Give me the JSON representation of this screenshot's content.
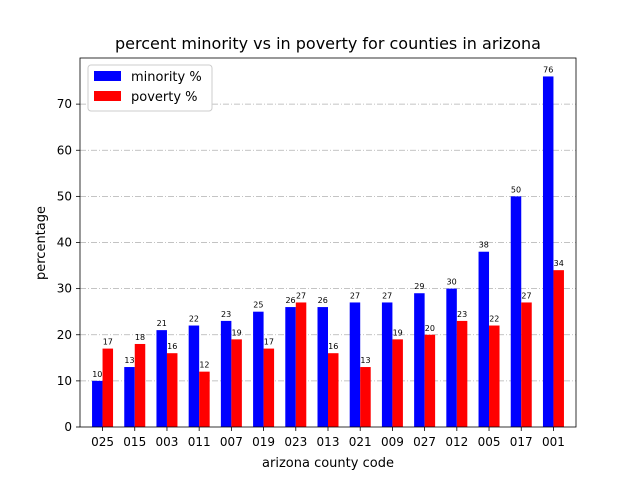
{
  "chart_data": {
    "type": "bar",
    "title": "percent minority vs in poverty for counties in arizona",
    "xlabel": "arizona county code",
    "ylabel": "percentage",
    "categories": [
      "025",
      "015",
      "003",
      "011",
      "007",
      "019",
      "023",
      "013",
      "021",
      "009",
      "027",
      "012",
      "005",
      "017",
      "001"
    ],
    "series": [
      {
        "name": "minority %",
        "color": "#0000ff",
        "values": [
          10,
          13,
          21,
          22,
          23,
          25,
          26,
          26,
          27,
          27,
          29,
          30,
          38,
          50,
          76
        ]
      },
      {
        "name": "poverty %",
        "color": "#ff0000",
        "values": [
          17,
          18,
          16,
          12,
          19,
          17,
          27,
          16,
          13,
          19,
          20,
          23,
          22,
          27,
          34
        ]
      }
    ],
    "ylim": [
      0,
      80
    ],
    "yticks": [
      0,
      10,
      20,
      30,
      40,
      50,
      60,
      70
    ],
    "grid": "horizontal dash-dot",
    "legend_position": "top-left",
    "data_labels": true
  }
}
